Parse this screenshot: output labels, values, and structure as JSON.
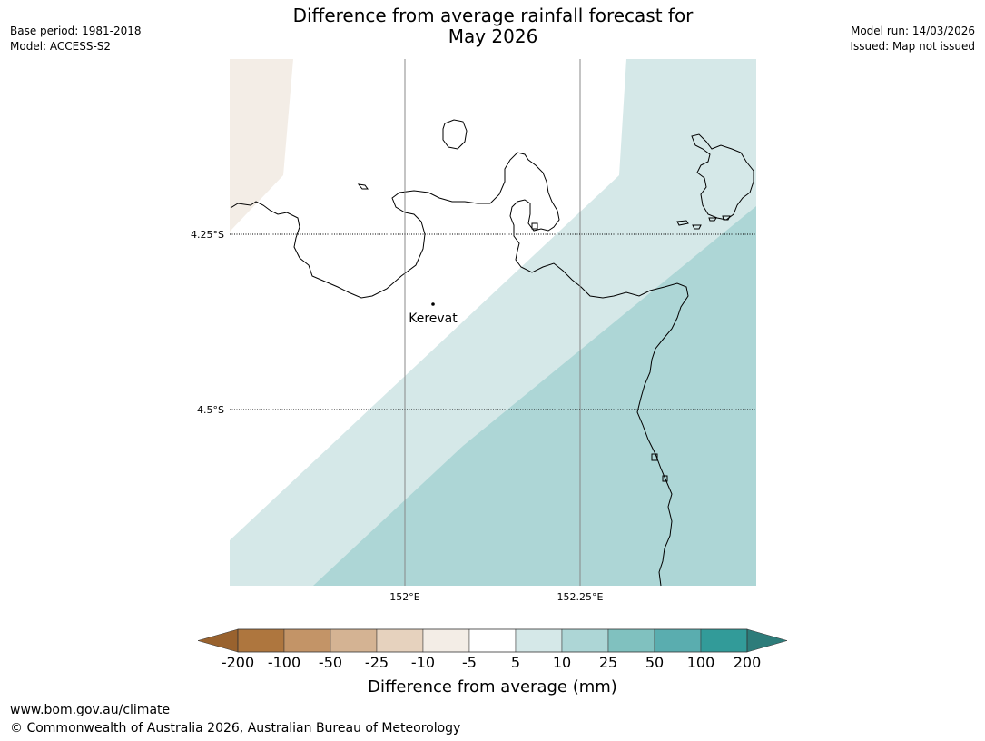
{
  "header": {
    "title_line1": "Difference from average rainfall forecast for",
    "title_line2": "May 2026",
    "base_period": "Base period: 1981-2018",
    "model": "Model: ACCESS-S2",
    "model_run": "Model run: 14/03/2026",
    "issued": "Issued: Map not issued"
  },
  "map": {
    "place": {
      "name": "Kerevat"
    },
    "lat_labels": [
      "4.25°S",
      "4.5°S"
    ],
    "lon_labels": [
      "152°E",
      "152.25°E"
    ],
    "colors": {
      "light_brown": "#f3ede6",
      "light_teal": "#d5e8e8",
      "teal": "#add6d6"
    }
  },
  "colorbar": {
    "title": "Difference from average (mm)",
    "ticks": [
      "-200",
      "-100",
      "-50",
      "-25",
      "-10",
      "-5",
      "5",
      "10",
      "25",
      "50",
      "100",
      "200"
    ],
    "bin_colors": [
      "#ae763e",
      "#c39467",
      "#d4b393",
      "#e6d2be",
      "#f3ede6",
      "#ffffff",
      "#d5e8e8",
      "#add6d6",
      "#80c1bf",
      "#5aadaf",
      "#329b99"
    ],
    "under_color": "#99622e",
    "over_color": "#2d7c7a"
  },
  "footer": {
    "url": "www.bom.gov.au/climate",
    "copyright": "© Commonwealth of Australia 2026, Australian Bureau of Meteorology"
  }
}
